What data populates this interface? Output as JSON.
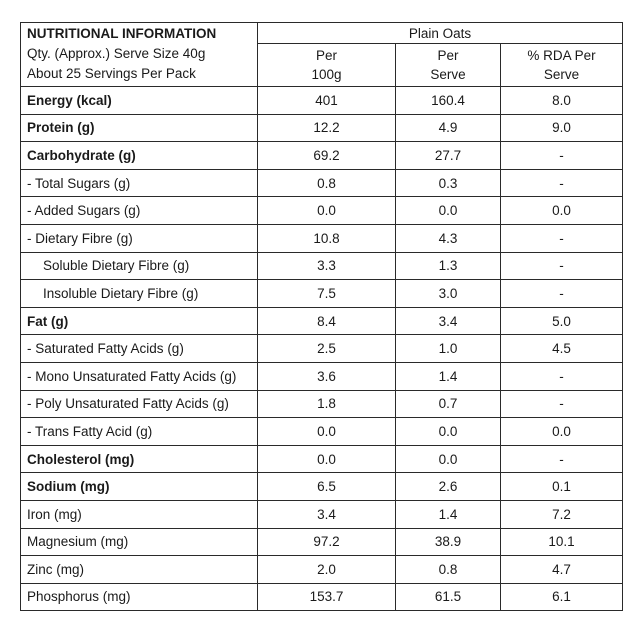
{
  "header": {
    "title": "NUTRITIONAL INFORMATION",
    "serve_size": "Qty. (Approx.) Serve Size 40g",
    "servings": "About 25 Servings Per Pack",
    "product": "Plain Oats",
    "columns": [
      [
        "Per",
        "100g"
      ],
      [
        "Per",
        "Serve"
      ],
      [
        "% RDA Per",
        "Serve"
      ]
    ]
  },
  "table": {
    "rows": [
      [
        "Energy (kcal)",
        "401",
        "160.4",
        "8.0"
      ],
      [
        "Protein (g)",
        "12.2",
        "4.9",
        "9.0"
      ],
      [
        "Carbohydrate (g)",
        "69.2",
        "27.7",
        "-"
      ],
      [
        "- Total Sugars (g)",
        "0.8",
        "0.3",
        "-"
      ],
      [
        "- Added Sugars (g)",
        "0.0",
        "0.0",
        "0.0"
      ],
      [
        "- Dietary Fibre (g)",
        "10.8",
        "4.3",
        "-"
      ],
      [
        "Soluble Dietary Fibre (g)",
        "3.3",
        "1.3",
        "-"
      ],
      [
        "Insoluble Dietary Fibre (g)",
        "7.5",
        "3.0",
        "-"
      ],
      [
        "Fat (g)",
        "8.4",
        "3.4",
        "5.0"
      ],
      [
        "- Saturated Fatty Acids (g)",
        "2.5",
        "1.0",
        "4.5"
      ],
      [
        "- Mono Unsaturated Fatty Acids (g)",
        "3.6",
        "1.4",
        "-"
      ],
      [
        "- Poly Unsaturated Fatty Acids (g)",
        "1.8",
        "0.7",
        "-"
      ],
      [
        "- Trans Fatty Acid (g)",
        "0.0",
        "0.0",
        "0.0"
      ],
      [
        "Cholesterol (mg)",
        "0.0",
        "0.0",
        "-"
      ],
      [
        "Sodium (mg)",
        "6.5",
        "2.6",
        "0.1"
      ],
      [
        "Iron (mg)",
        "3.4",
        "1.4",
        "7.2"
      ],
      [
        "Magnesium (mg)",
        "97.2",
        "38.9",
        "10.1"
      ],
      [
        "Zinc (mg)",
        "2.0",
        "0.8",
        "4.7"
      ],
      [
        "Phosphorus (mg)",
        "153.7",
        "61.5",
        "6.1"
      ]
    ]
  }
}
